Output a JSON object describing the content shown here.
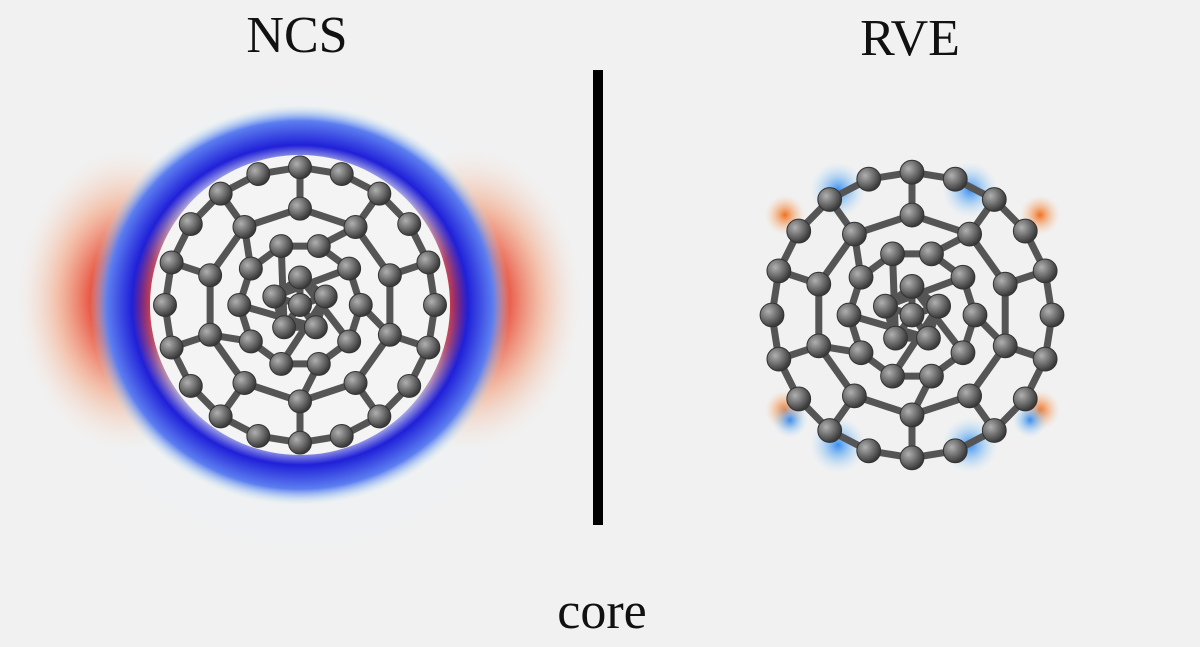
{
  "panels": [
    {
      "label": "NCS"
    },
    {
      "label": "RVE"
    }
  ],
  "caption": "core"
}
